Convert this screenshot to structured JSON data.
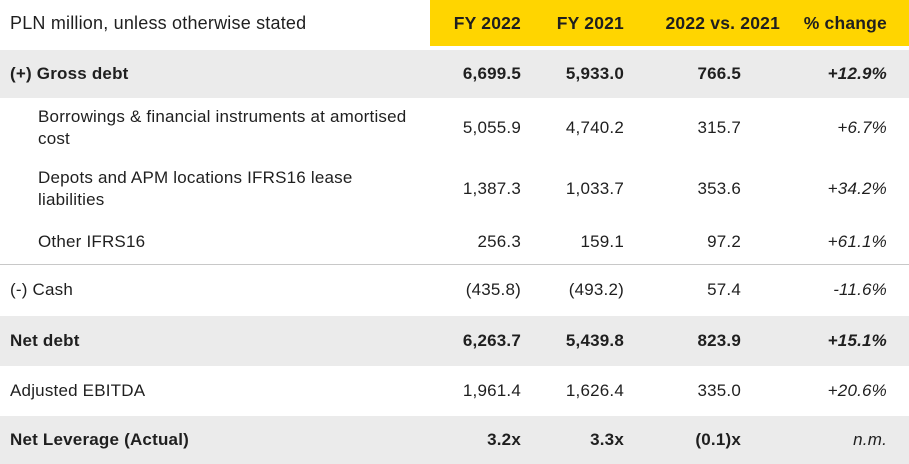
{
  "chart_data": {
    "type": "table",
    "title": "PLN million, unless otherwise stated",
    "columns": [
      "PLN million, unless otherwise stated",
      "FY 2022",
      "FY 2021",
      "2022 vs. 2021",
      "% change"
    ],
    "rows": [
      {
        "label": "(+) Gross debt",
        "fy2022": "6,699.5",
        "fy2021": "5,933.0",
        "change": "766.5",
        "pct": "+12.9%",
        "emphasis": true,
        "indent": false
      },
      {
        "label": "Borrowings & financial instruments at amortised cost",
        "fy2022": "5,055.9",
        "fy2021": "4,740.2",
        "change": "315.7",
        "pct": "+6.7%",
        "emphasis": false,
        "indent": true
      },
      {
        "label": "Depots and APM locations IFRS16 lease liabilities",
        "fy2022": "1,387.3",
        "fy2021": "1,033.7",
        "change": "353.6",
        "pct": "+34.2%",
        "emphasis": false,
        "indent": true
      },
      {
        "label": "Other IFRS16",
        "fy2022": "256.3",
        "fy2021": "159.1",
        "change": "97.2",
        "pct": "+61.1%",
        "emphasis": false,
        "indent": true
      },
      {
        "label": "(-) Cash",
        "fy2022": "(435.8)",
        "fy2021": "(493.2)",
        "change": "57.4",
        "pct": "-11.6%",
        "emphasis": false,
        "indent": false
      },
      {
        "label": "Net debt",
        "fy2022": "6,263.7",
        "fy2021": "5,439.8",
        "change": "823.9",
        "pct": "+15.1%",
        "emphasis": true,
        "indent": false
      },
      {
        "label": "Adjusted EBITDA",
        "fy2022": "1,961.4",
        "fy2021": "1,626.4",
        "change": "335.0",
        "pct": "+20.6%",
        "emphasis": false,
        "indent": false
      },
      {
        "label": "Net Leverage (Actual)",
        "fy2022": "3.2x",
        "fy2021": "3.3x",
        "change": "(0.1)x",
        "pct": "n.m.",
        "emphasis": true,
        "indent": false
      }
    ]
  },
  "colors": {
    "header_accent": "#FFD500",
    "shaded_row": "#EBEBEB",
    "text": "#1F1F1F",
    "divider": "#C8C8C8",
    "header_underline": "#3C3C3C"
  }
}
